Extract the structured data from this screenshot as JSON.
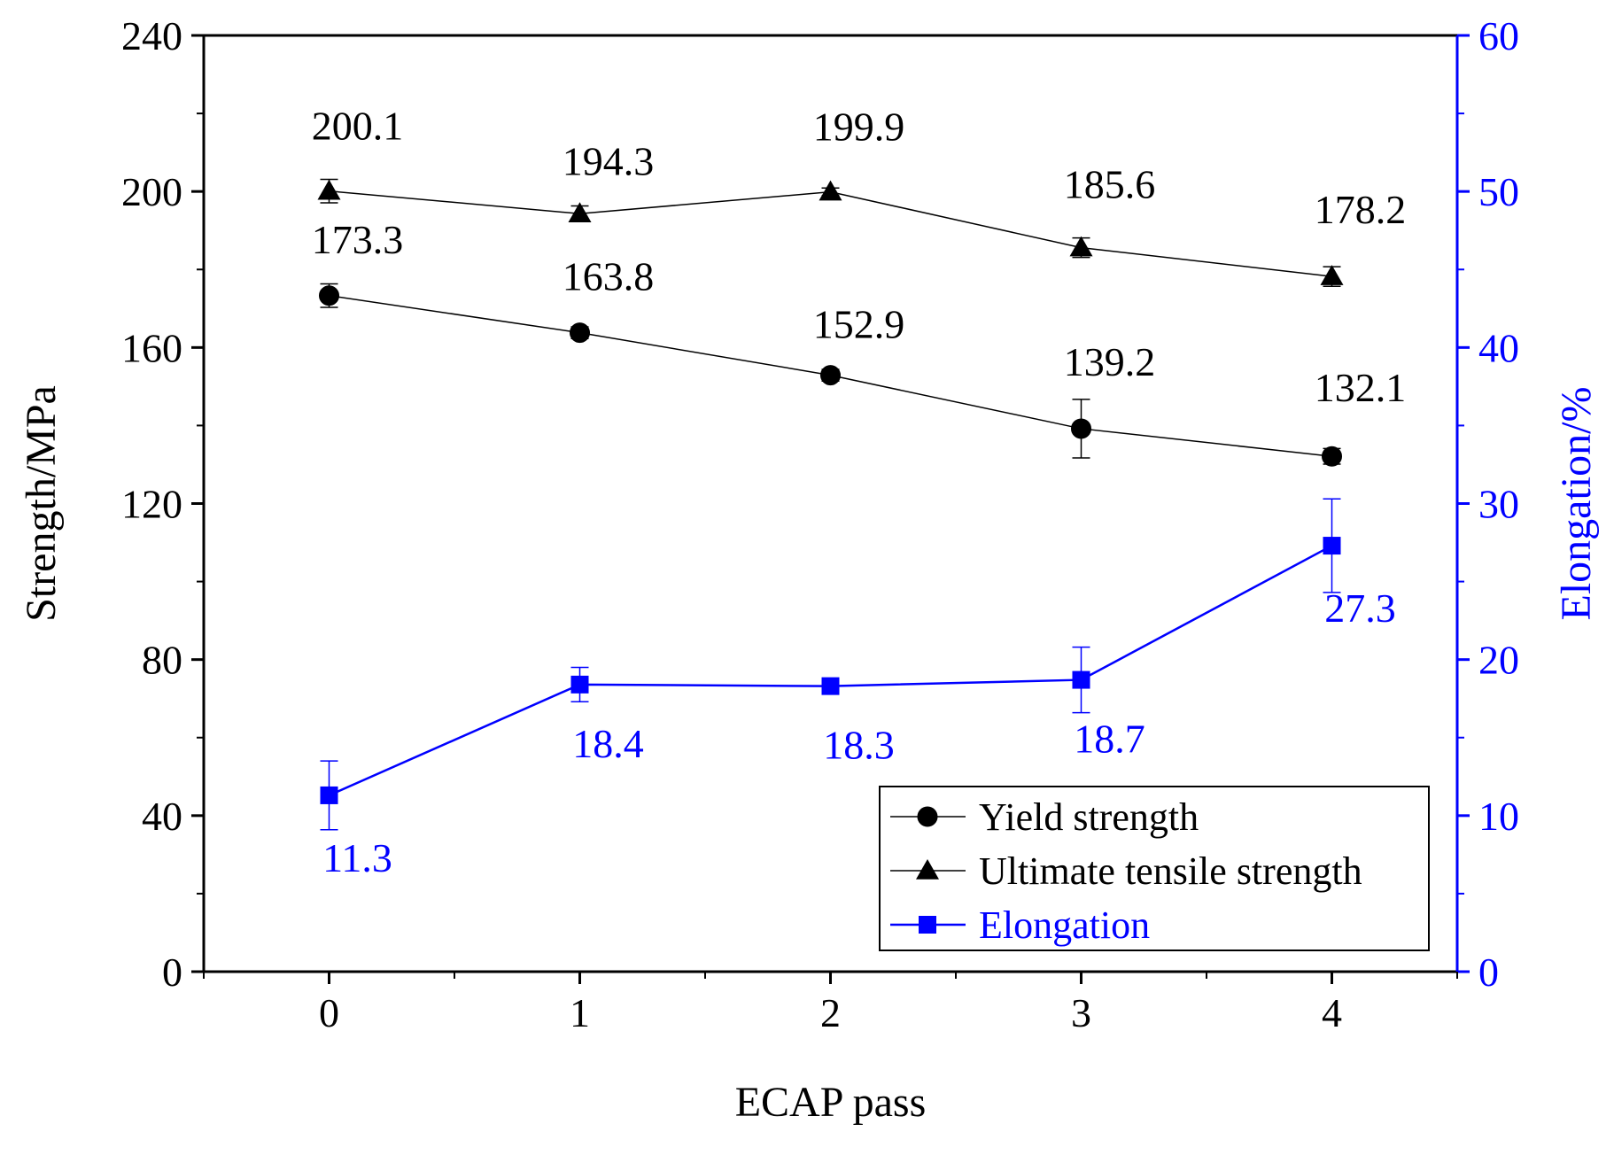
{
  "chart_data": {
    "type": "line",
    "x": [
      0,
      1,
      2,
      3,
      4
    ],
    "xlabel": "ECAP pass",
    "ylabel_left": "Strength/MPa",
    "ylabel_right": "Elongation/%",
    "xlim": [
      -0.5,
      4.5
    ],
    "ylim_left": [
      0,
      240
    ],
    "ylim_right": [
      0,
      60
    ],
    "xticks": [
      "0",
      "1",
      "2",
      "3",
      "4"
    ],
    "yticks_left": [
      "0",
      "40",
      "80",
      "120",
      "160",
      "200",
      "240"
    ],
    "yticks_right": [
      "0",
      "10",
      "20",
      "30",
      "40",
      "50",
      "60"
    ],
    "grid": false,
    "legend_position": "bottom-right",
    "series": [
      {
        "name": "Yield strength",
        "axis": "left",
        "marker": "circle",
        "color": "#000000",
        "values": [
          173.3,
          163.8,
          152.9,
          139.2,
          132.1
        ],
        "errors": [
          3.0,
          1.5,
          1.5,
          7.5,
          2.0
        ],
        "labels": [
          "173.3",
          "163.8",
          "152.9",
          "139.2",
          "132.1"
        ]
      },
      {
        "name": "Ultimate tensile strength",
        "axis": "left",
        "marker": "triangle",
        "color": "#000000",
        "values": [
          200.1,
          194.3,
          199.9,
          185.6,
          178.2
        ],
        "errors": [
          3.0,
          2.0,
          1.0,
          2.5,
          2.5
        ],
        "labels": [
          "200.1",
          "194.3",
          "199.9",
          "185.6",
          "178.2"
        ]
      },
      {
        "name": "Elongation",
        "axis": "right",
        "marker": "square",
        "color": "#0000ff",
        "values": [
          11.3,
          18.4,
          18.3,
          18.7,
          27.3
        ],
        "errors": [
          2.2,
          1.1,
          0.3,
          2.1,
          3.0
        ],
        "labels": [
          "11.3",
          "18.4",
          "18.3",
          "18.7",
          "27.3"
        ]
      }
    ]
  }
}
